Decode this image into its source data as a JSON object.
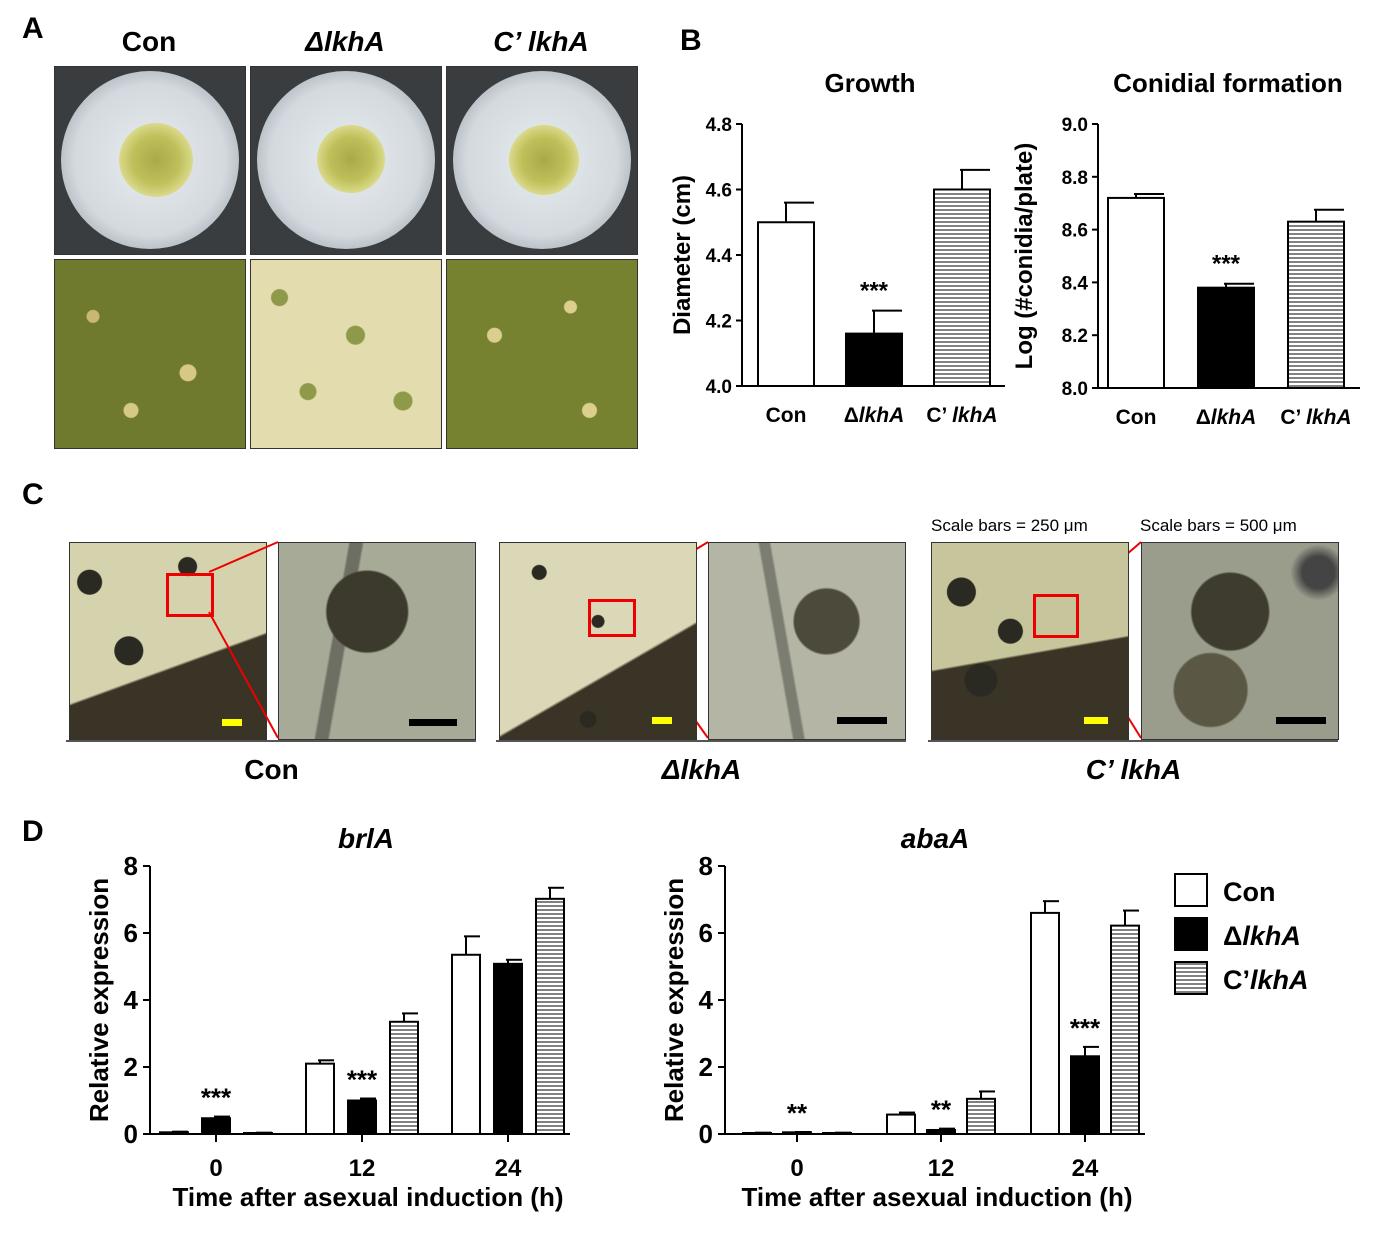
{
  "panel_labels": {
    "a": "A",
    "b": "B",
    "c": "C",
    "d": "D"
  },
  "panelA": {
    "headers": [
      "Con",
      "ΔlkhA",
      "C’ lkhA"
    ]
  },
  "panelC": {
    "labels": [
      "Con",
      "ΔlkhA",
      "C’ lkhA"
    ],
    "scale_note_1": "Scale bars = 250 μm",
    "scale_note_2": "Scale bars = 500 μm",
    "scale_colors": {
      "small": "#ffff00",
      "large": "#000000"
    },
    "zoom_box_color": "#ff0000"
  },
  "chart_data": [
    {
      "id": "growth",
      "type": "bar",
      "title": "Growth",
      "ylabel": "Diameter (cm)",
      "xlabel": "",
      "categories": [
        "Con",
        "ΔlkhA",
        "C’ lkhA"
      ],
      "values": [
        4.5,
        4.16,
        4.6
      ],
      "errors": [
        0.06,
        0.07,
        0.06
      ],
      "fills": [
        "white",
        "black",
        "hatch"
      ],
      "significance": [
        "",
        "***",
        ""
      ],
      "ylim": [
        4.0,
        4.8
      ],
      "yticks": [
        "4.0",
        "4.2",
        "4.4",
        "4.6",
        "4.8"
      ]
    },
    {
      "id": "conidial",
      "type": "bar",
      "title": "Conidial formation",
      "ylabel": "Log (#conidia/plate)",
      "xlabel": "",
      "categories": [
        "Con",
        "ΔlkhA",
        "C’ lkhA"
      ],
      "values": [
        8.72,
        8.38,
        8.63
      ],
      "errors": [
        0.015,
        0.015,
        0.045
      ],
      "fills": [
        "white",
        "black",
        "hatch"
      ],
      "significance": [
        "",
        "***",
        ""
      ],
      "ylim": [
        8.0,
        9.0
      ],
      "yticks": [
        "8.0",
        "8.2",
        "8.4",
        "8.6",
        "8.8",
        "9.0"
      ]
    },
    {
      "id": "brlA",
      "type": "bar",
      "title": "brlA",
      "ylabel": "Relative expression",
      "xlabel": "Time after asexual induction (h)",
      "categories": [
        "0",
        "12",
        "24"
      ],
      "series": [
        {
          "name": "Con",
          "fill": "white",
          "values": [
            0.05,
            2.1,
            5.35
          ],
          "errors": [
            0.02,
            0.1,
            0.55
          ]
        },
        {
          "name": "ΔlkhA",
          "fill": "black",
          "values": [
            0.47,
            1.0,
            5.08
          ],
          "errors": [
            0.05,
            0.06,
            0.12
          ]
        },
        {
          "name": "C’lkhA",
          "fill": "hatch",
          "values": [
            0.03,
            3.35,
            7.02
          ],
          "errors": [
            0.01,
            0.25,
            0.33
          ]
        }
      ],
      "significance": [
        {
          "group": 0,
          "series": 1,
          "text": "***"
        },
        {
          "group": 1,
          "series": 1,
          "text": "***"
        }
      ],
      "ylim": [
        0,
        8
      ],
      "yticks": [
        "0",
        "2",
        "4",
        "6",
        "8"
      ]
    },
    {
      "id": "abaA",
      "type": "bar",
      "title": "abaA",
      "ylabel": "Relative expression",
      "xlabel": "Time after asexual induction (h)",
      "categories": [
        "0",
        "12",
        "24"
      ],
      "series": [
        {
          "name": "Con",
          "fill": "white",
          "values": [
            0.03,
            0.58,
            6.6
          ],
          "errors": [
            0.01,
            0.06,
            0.35
          ]
        },
        {
          "name": "ΔlkhA",
          "fill": "black",
          "values": [
            0.05,
            0.12,
            2.32
          ],
          "errors": [
            0.01,
            0.04,
            0.28
          ]
        },
        {
          "name": "C’lkhA",
          "fill": "hatch",
          "values": [
            0.03,
            1.05,
            6.22
          ],
          "errors": [
            0.01,
            0.22,
            0.45
          ]
        }
      ],
      "significance": [
        {
          "group": 0,
          "series": 1,
          "text": "**"
        },
        {
          "group": 1,
          "series": 1,
          "text": "**"
        },
        {
          "group": 2,
          "series": 1,
          "text": "***"
        }
      ],
      "ylim": [
        0,
        8
      ],
      "yticks": [
        "0",
        "2",
        "4",
        "6",
        "8"
      ],
      "legend": [
        "Con",
        "ΔlkhA",
        "C’lkhA"
      ],
      "legend_position": "right"
    }
  ]
}
